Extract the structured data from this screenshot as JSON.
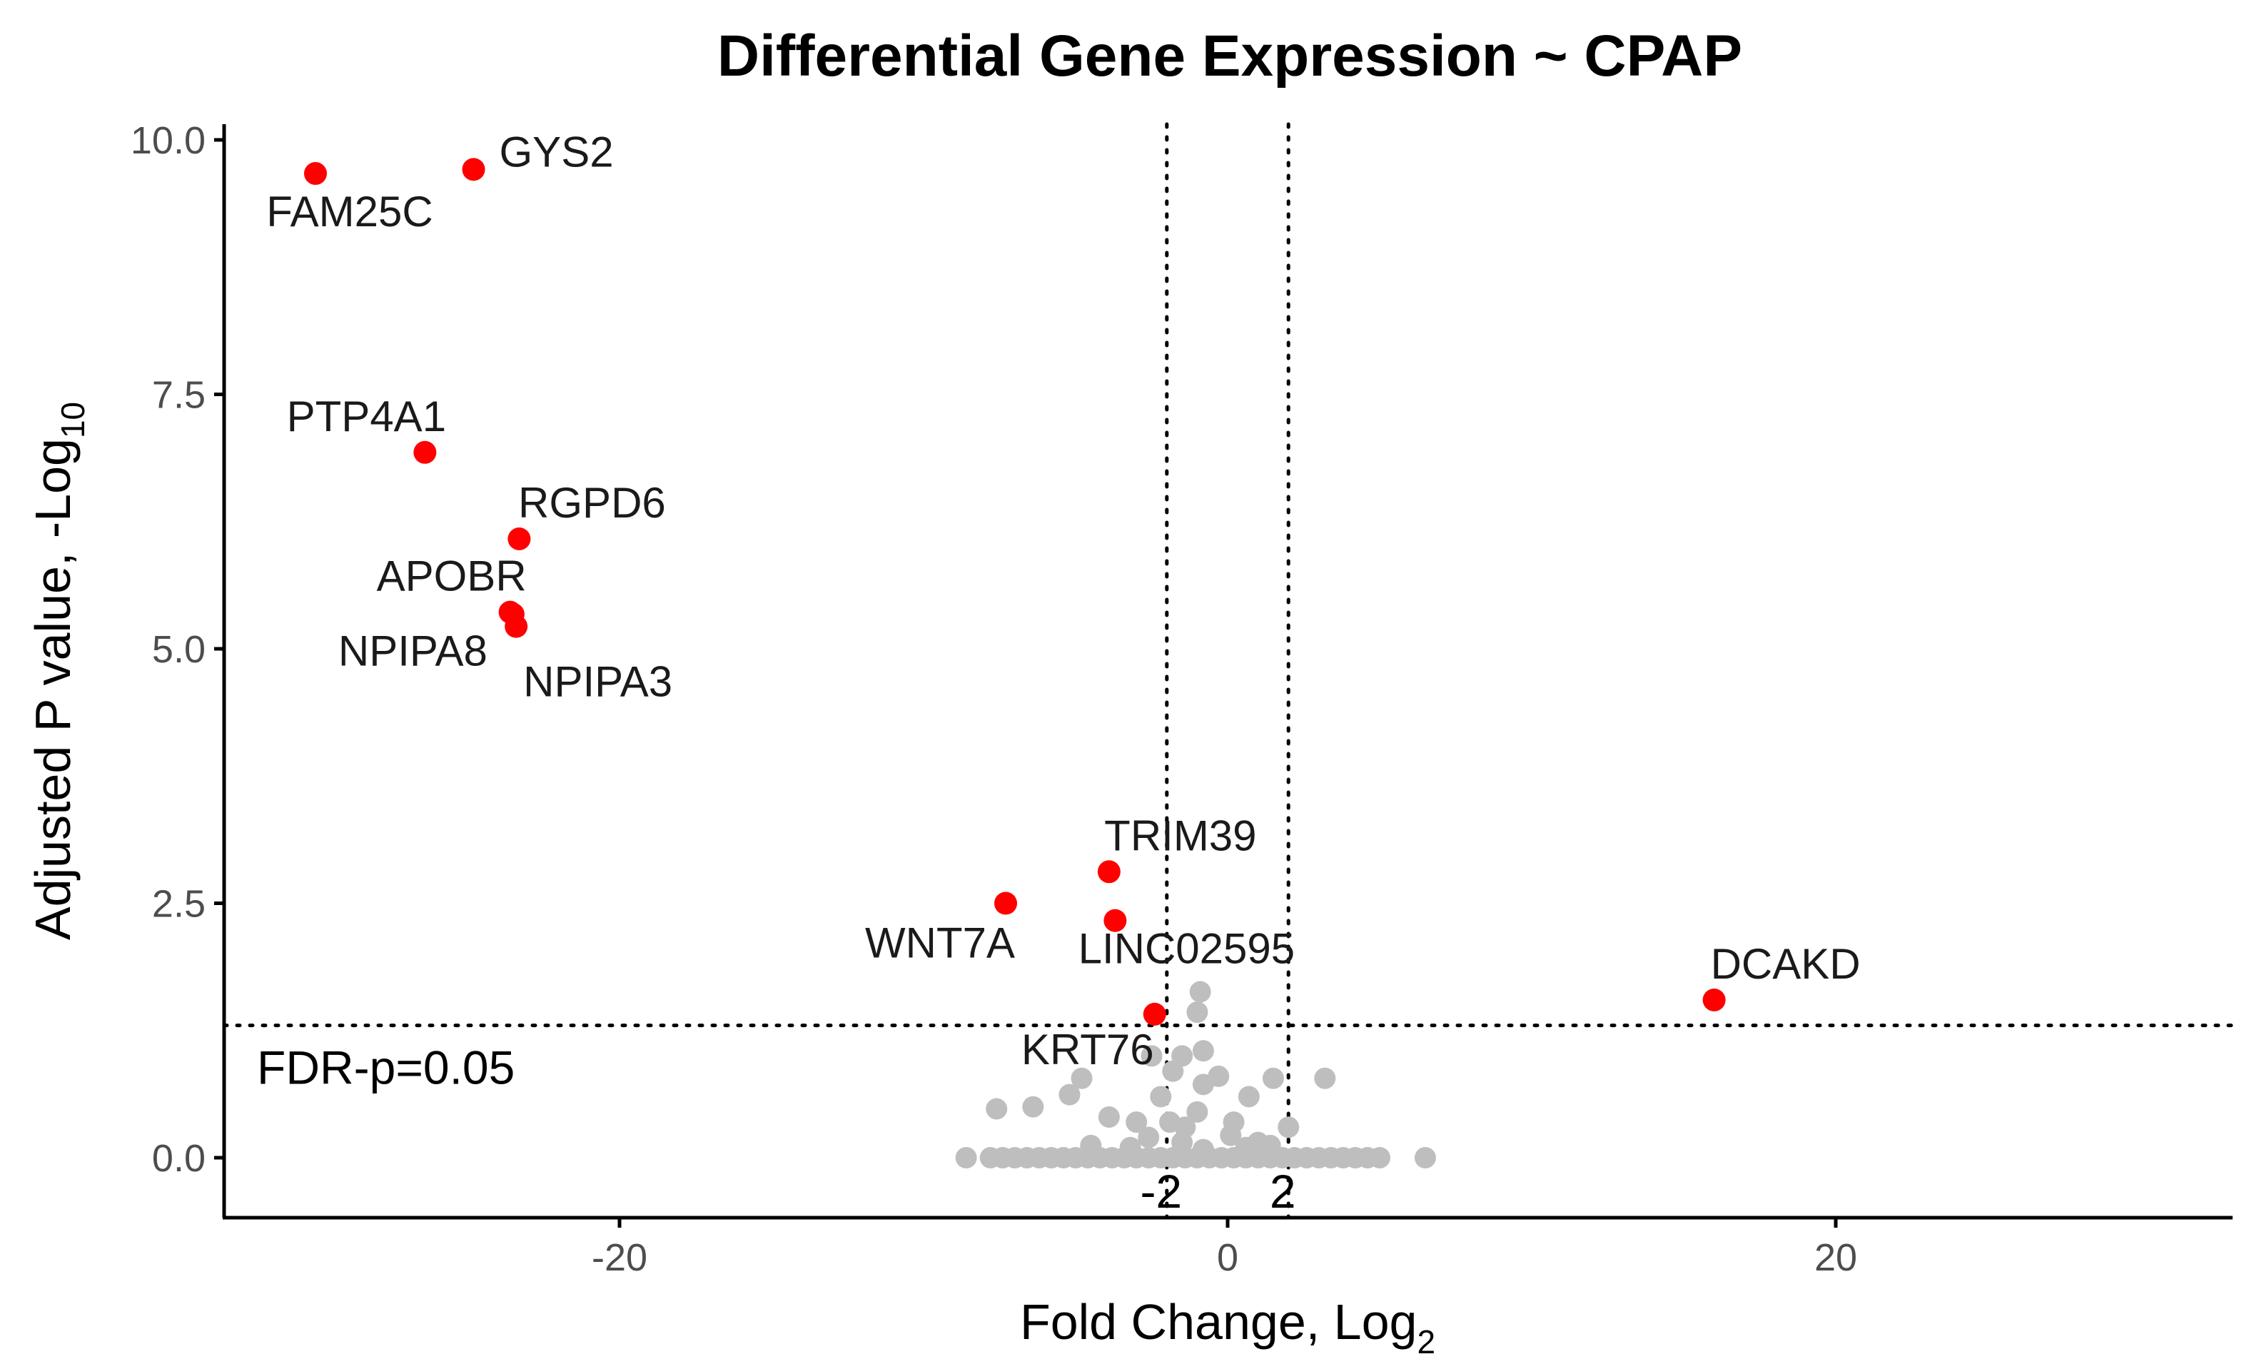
{
  "chart_data": {
    "type": "scatter",
    "title": "Differential Gene Expression ~ CPAP",
    "xlabel": {
      "main": "Fold Change, Log",
      "subscript": "2"
    },
    "ylabel": {
      "main": "Adjusted P value, -Log",
      "subscript": "10"
    },
    "xlim": [
      -33,
      33
    ],
    "ylim": [
      -1.1,
      10.3
    ],
    "x_ticks": [
      {
        "value": -20,
        "label": "-20"
      },
      {
        "value": 0,
        "label": "0"
      },
      {
        "value": 20,
        "label": "20"
      }
    ],
    "y_ticks": [
      {
        "value": 0,
        "label": "0.0"
      },
      {
        "value": 2.5,
        "label": "2.5"
      },
      {
        "value": 5,
        "label": "5.0"
      },
      {
        "value": 7.5,
        "label": "7.5"
      },
      {
        "value": 10,
        "label": "10.0"
      }
    ],
    "reference_lines": {
      "vertical": [
        {
          "x": -2,
          "label": "-2"
        },
        {
          "x": 2,
          "label": "2"
        }
      ],
      "horizontal": [
        {
          "y": 1.3,
          "label": "FDR-p=0.05"
        }
      ]
    },
    "colors": {
      "significant": "#ff0000",
      "not_significant": "#bebebe",
      "axis": "#000000",
      "tick_text": "#4d4d4d"
    },
    "significant_genes": [
      {
        "gene": "FAM25C",
        "x": -30.0,
        "y": 9.67,
        "label_side": "below"
      },
      {
        "gene": "GYS2",
        "x": -24.8,
        "y": 9.71,
        "label_side": "right"
      },
      {
        "gene": "PTP4A1",
        "x": -26.4,
        "y": 6.93,
        "label_side": "above-left"
      },
      {
        "gene": "RGPD6",
        "x": -23.3,
        "y": 6.08,
        "label_side": "above"
      },
      {
        "gene": "APOBR",
        "x": -23.6,
        "y": 5.36,
        "label_side": "above-left"
      },
      {
        "gene": "NPIPA8",
        "x": -23.5,
        "y": 5.34,
        "label_side": "left"
      },
      {
        "gene": "NPIPA3",
        "x": -23.4,
        "y": 5.22,
        "label_side": "below-right"
      },
      {
        "gene": "TRIM39",
        "x": -3.9,
        "y": 2.81,
        "label_side": "above"
      },
      {
        "gene": "WNT7A",
        "x": -7.3,
        "y": 2.5,
        "label_side": "below-left"
      },
      {
        "gene": "LINC02595",
        "x": -3.7,
        "y": 2.33,
        "label_side": "below"
      },
      {
        "gene": "KRT76",
        "x": -2.4,
        "y": 1.41,
        "label_side": "below-left"
      },
      {
        "gene": "DCAKD",
        "x": 16.0,
        "y": 1.55,
        "label_side": "above"
      }
    ],
    "non_significant": [
      {
        "x": -8.6,
        "y": 0
      },
      {
        "x": -7.8,
        "y": 0
      },
      {
        "x": -7.4,
        "y": 0
      },
      {
        "x": -7.0,
        "y": 0
      },
      {
        "x": -6.6,
        "y": 0
      },
      {
        "x": -6.2,
        "y": 0
      },
      {
        "x": -5.8,
        "y": 0
      },
      {
        "x": -5.4,
        "y": 0
      },
      {
        "x": -5.0,
        "y": 0
      },
      {
        "x": -4.6,
        "y": 0
      },
      {
        "x": -4.2,
        "y": 0
      },
      {
        "x": -3.8,
        "y": 0
      },
      {
        "x": -3.4,
        "y": 0
      },
      {
        "x": -3.0,
        "y": 0
      },
      {
        "x": -2.6,
        "y": 0
      },
      {
        "x": -2.2,
        "y": 0
      },
      {
        "x": -1.8,
        "y": 0
      },
      {
        "x": -1.4,
        "y": 0
      },
      {
        "x": -1.0,
        "y": 0
      },
      {
        "x": -0.6,
        "y": 0
      },
      {
        "x": -0.2,
        "y": 0
      },
      {
        "x": 0.2,
        "y": 0
      },
      {
        "x": 0.6,
        "y": 0
      },
      {
        "x": 1.0,
        "y": 0
      },
      {
        "x": 1.4,
        "y": 0
      },
      {
        "x": 1.8,
        "y": 0
      },
      {
        "x": 2.2,
        "y": 0
      },
      {
        "x": 2.6,
        "y": 0
      },
      {
        "x": 3.0,
        "y": 0
      },
      {
        "x": 3.4,
        "y": 0
      },
      {
        "x": 3.8,
        "y": 0
      },
      {
        "x": 4.2,
        "y": 0
      },
      {
        "x": 4.6,
        "y": 0
      },
      {
        "x": 5.0,
        "y": 0
      },
      {
        "x": 6.5,
        "y": 0
      },
      {
        "x": -4.5,
        "y": 0.12
      },
      {
        "x": -3.2,
        "y": 0.1
      },
      {
        "x": -1.5,
        "y": 0.15
      },
      {
        "x": 0.6,
        "y": 0.1
      },
      {
        "x": 1.4,
        "y": 0.12
      },
      {
        "x": -2.6,
        "y": 0.2
      },
      {
        "x": 0.1,
        "y": 0.22
      },
      {
        "x": -0.8,
        "y": 0.08
      },
      {
        "x": -7.6,
        "y": 0.48
      },
      {
        "x": -6.4,
        "y": 0.5
      },
      {
        "x": -5.2,
        "y": 0.62
      },
      {
        "x": -4.8,
        "y": 0.78
      },
      {
        "x": -3.9,
        "y": 0.4
      },
      {
        "x": -3.0,
        "y": 0.35
      },
      {
        "x": -2.2,
        "y": 0.6
      },
      {
        "x": -1.9,
        "y": 0.35
      },
      {
        "x": -1.4,
        "y": 0.3
      },
      {
        "x": -1.0,
        "y": 0.45
      },
      {
        "x": -0.8,
        "y": 0.72
      },
      {
        "x": 0.2,
        "y": 0.35
      },
      {
        "x": 0.7,
        "y": 0.6
      },
      {
        "x": 1.5,
        "y": 0.78
      },
      {
        "x": 2.0,
        "y": 0.3
      },
      {
        "x": 3.2,
        "y": 0.78
      },
      {
        "x": 1.0,
        "y": 0.15
      },
      {
        "x": -2.5,
        "y": 1.0
      },
      {
        "x": -1.5,
        "y": 1.0
      },
      {
        "x": -0.8,
        "y": 1.05
      },
      {
        "x": -1.0,
        "y": 1.43
      },
      {
        "x": -0.9,
        "y": 1.63
      },
      {
        "x": -1.8,
        "y": 0.85
      },
      {
        "x": -0.3,
        "y": 0.8
      }
    ]
  }
}
